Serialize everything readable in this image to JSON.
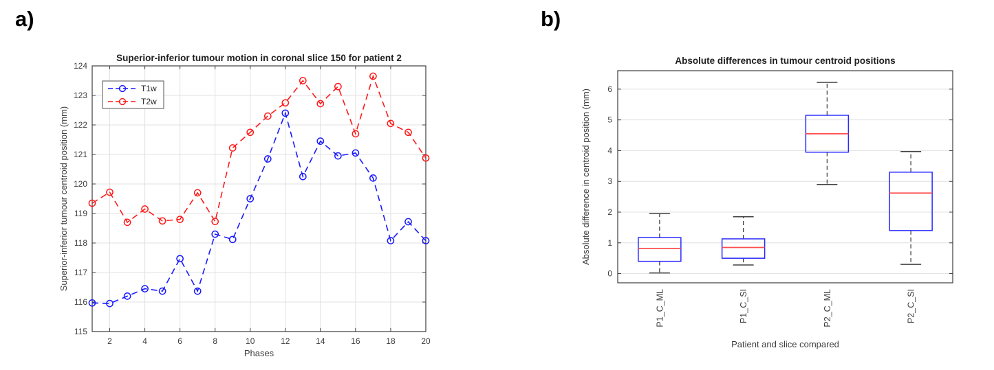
{
  "panels": [
    {
      "id": "a",
      "label": "a)"
    },
    {
      "id": "b",
      "label": "b)"
    }
  ],
  "colors": {
    "t1w_blue": "#1a1aff",
    "t2w_red": "#ff1a1a",
    "box_edge_blue": "#2828ff",
    "median_red": "#ff4d4d",
    "whisker_gray": "#404040",
    "grid_gray": "#e0e0e0",
    "axis_gray": "#3c3c3c",
    "tick_text": "#3d3d3d",
    "title_text": "#1f1f1f"
  },
  "chart_data": [
    {
      "type": "line",
      "panel": "a",
      "title": "Superior-inferior tumour motion in coronal slice 150 for patient 2",
      "xlabel": "Phases",
      "ylabel": "Superior-inferior tumour centroid position (mm)",
      "xlim": [
        1,
        20
      ],
      "ylim": [
        115,
        124
      ],
      "xticks": [
        2,
        4,
        6,
        8,
        10,
        12,
        14,
        16,
        18,
        20
      ],
      "yticks": [
        115,
        116,
        117,
        118,
        119,
        120,
        121,
        122,
        123,
        124
      ],
      "grid": true,
      "legend_position": "upper-left",
      "x": [
        1,
        2,
        3,
        4,
        5,
        6,
        7,
        8,
        9,
        10,
        11,
        12,
        13,
        14,
        15,
        16,
        17,
        18,
        19,
        20
      ],
      "series": [
        {
          "name": "T1w",
          "color": "#1a1aff",
          "linestyle": "dashed",
          "marker": "circle",
          "values": [
            115.97,
            115.95,
            116.2,
            116.45,
            116.37,
            117.47,
            116.37,
            118.3,
            118.12,
            119.5,
            120.85,
            122.4,
            120.25,
            121.45,
            120.95,
            121.05,
            120.2,
            118.08,
            118.72,
            118.08
          ]
        },
        {
          "name": "T2w",
          "color": "#ff1a1a",
          "linestyle": "dashed",
          "marker": "circle",
          "values": [
            119.35,
            119.72,
            118.7,
            119.15,
            118.75,
            118.8,
            119.7,
            118.73,
            121.22,
            121.75,
            122.3,
            122.75,
            123.5,
            122.72,
            123.3,
            121.7,
            123.65,
            122.05,
            121.75,
            120.88
          ]
        }
      ]
    },
    {
      "type": "box",
      "panel": "b",
      "title": "Absolute differences in tumour centroid positions",
      "xlabel": "Patient and slice compared",
      "ylabel": "Absolute difference in centroid position (mm)",
      "ylim": [
        -0.3,
        6.6
      ],
      "yticks": [
        0,
        1,
        2,
        3,
        4,
        5,
        6
      ],
      "grid": "horizontal",
      "categories": [
        "P1_C_ML",
        "P1_C_SI",
        "P2_C_ML",
        "P2_C_SI"
      ],
      "boxes": [
        {
          "label": "P1_C_ML",
          "whislo": 0.02,
          "q1": 0.4,
          "med": 0.82,
          "q3": 1.17,
          "whishi": 1.95
        },
        {
          "label": "P1_C_SI",
          "whislo": 0.28,
          "q1": 0.5,
          "med": 0.85,
          "q3": 1.13,
          "whishi": 1.85
        },
        {
          "label": "P2_C_ML",
          "whislo": 2.9,
          "q1": 3.95,
          "med": 4.55,
          "q3": 5.15,
          "whishi": 6.22
        },
        {
          "label": "P2_C_SI",
          "whislo": 0.3,
          "q1": 1.4,
          "med": 2.62,
          "q3": 3.3,
          "whishi": 3.97
        }
      ],
      "box_edge_color": "#2828ff",
      "median_color": "#ff4d4d",
      "whisker_color": "#404040"
    }
  ]
}
